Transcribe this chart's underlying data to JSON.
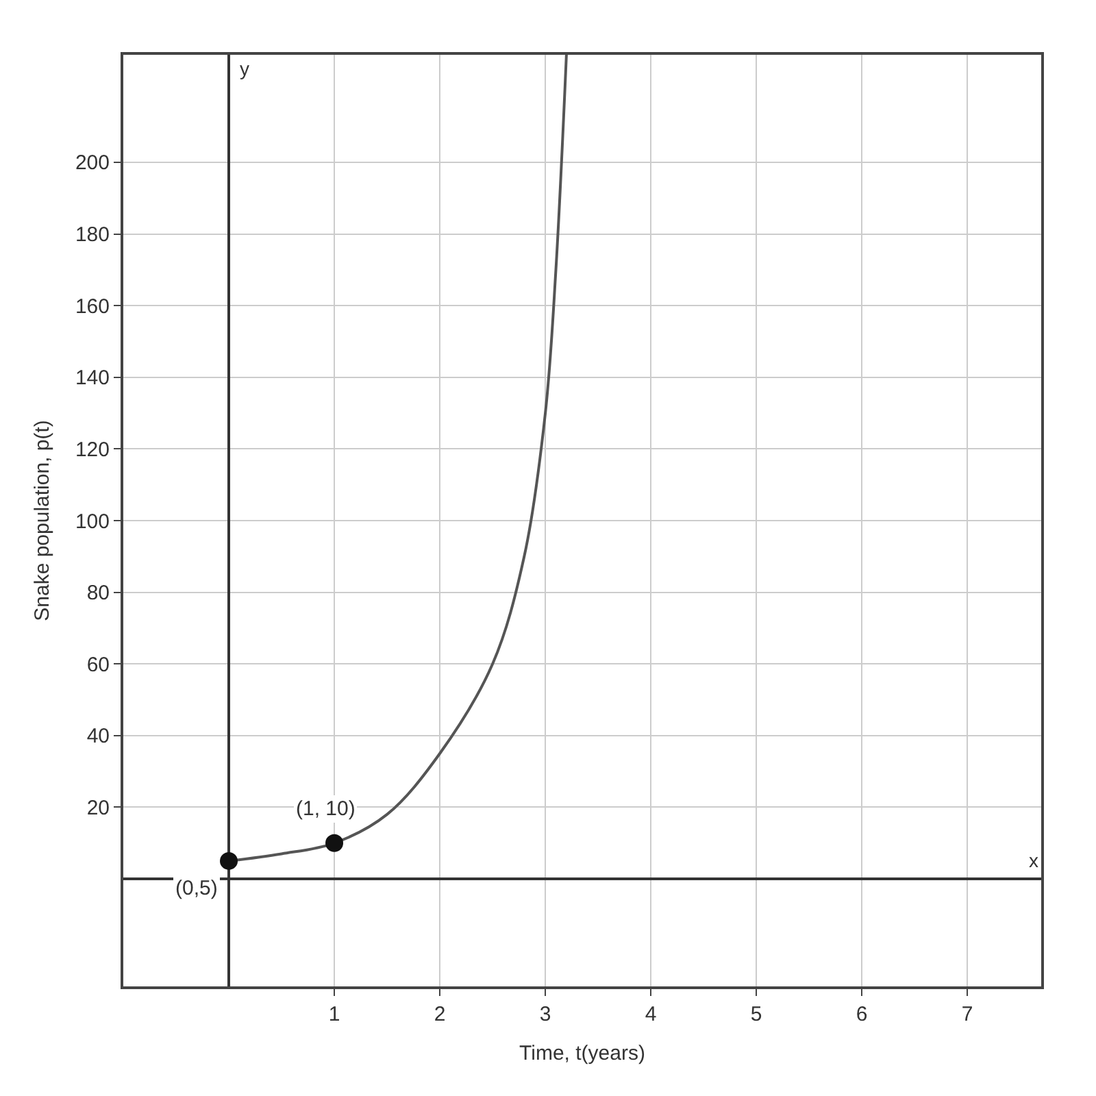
{
  "chart_data": {
    "type": "line",
    "xlabel": "Time, t(years)",
    "ylabel": "Snake population, p(t)",
    "xlim": [
      -1,
      7.7
    ],
    "ylim": [
      -30,
      230
    ],
    "xticks": [
      1,
      2,
      3,
      4,
      5,
      6,
      7
    ],
    "yticks": [
      20,
      40,
      60,
      80,
      100,
      120,
      140,
      160,
      180,
      200
    ],
    "grid": true,
    "series": [
      {
        "color": "#555555",
        "x": [
          0,
          0.5,
          1,
          1.5,
          2,
          2.5,
          2.8,
          3,
          3.1,
          3.2
        ],
        "values": [
          5,
          7,
          10,
          18,
          35,
          60,
          90,
          130,
          170,
          230
        ],
        "marker": "none"
      },
      {
        "type": "scatter",
        "color": "#111111",
        "x": [
          0,
          1
        ],
        "values": [
          5,
          10
        ],
        "marker": "circle"
      }
    ],
    "annotations": [
      {
        "text": "(0,5)",
        "x": 0,
        "y": 5
      },
      {
        "text": "(1, 10)",
        "x": 1,
        "y": 10
      },
      "x",
      "y"
    ]
  }
}
